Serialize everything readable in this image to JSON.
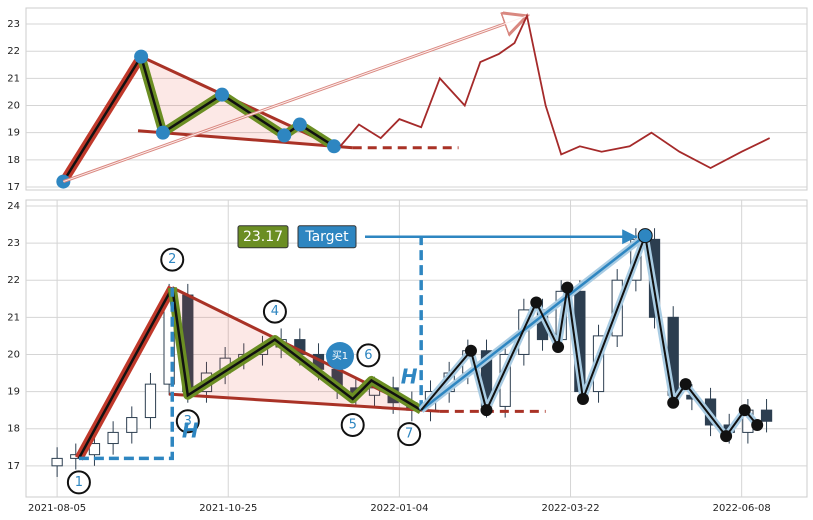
{
  "chart_data": [
    {
      "type": "line",
      "color": "#a52a2a",
      "x": [
        91,
        97,
        104,
        110,
        117,
        123,
        131,
        136,
        142,
        147,
        151,
        157,
        162,
        168,
        175,
        184,
        191,
        200,
        210,
        220,
        229
      ],
      "values": [
        18.5,
        19.3,
        18.8,
        19.5,
        19.2,
        21.0,
        20.0,
        21.6,
        21.9,
        22.3,
        23.3,
        20.0,
        18.2,
        18.5,
        18.3,
        18.5,
        19.0,
        18.3,
        17.7,
        18.3,
        18.8
      ],
      "xlim": [
        -10,
        241
      ],
      "ylim": [
        16.89,
        23.59
      ],
      "yticks": [
        17,
        18,
        19,
        20,
        21,
        22,
        23
      ],
      "grid": true,
      "pattern": {
        "x": [
          2,
          27,
          34,
          53,
          73,
          78,
          89
        ],
        "values": [
          17.2,
          21.8,
          19.0,
          20.4,
          18.9,
          19.3,
          18.5
        ]
      }
    },
    {
      "type": "candlestick",
      "x": [
        0,
        6,
        12,
        18,
        24,
        30,
        36,
        42,
        48,
        54,
        60,
        66,
        72,
        78,
        84,
        90,
        96,
        102,
        108,
        114,
        120,
        126,
        132,
        138,
        144,
        150,
        156,
        162,
        168,
        174,
        180,
        186,
        192,
        198,
        204,
        210,
        216,
        222,
        228
      ],
      "open": [
        17.0,
        17.2,
        17.3,
        17.6,
        17.9,
        18.3,
        19.2,
        21.6,
        19.0,
        19.5,
        19.9,
        20.0,
        20.2,
        20.4,
        20.0,
        19.6,
        19.1,
        18.9,
        19.1,
        18.7,
        18.5,
        19.0,
        19.5,
        20.1,
        18.6,
        20.0,
        21.2,
        20.4,
        21.7,
        19.0,
        20.5,
        22.0,
        23.1,
        21.0,
        18.9,
        18.8,
        18.1,
        17.9,
        18.5
      ],
      "high": [
        17.5,
        17.6,
        17.9,
        18.2,
        18.6,
        19.5,
        21.9,
        21.9,
        19.8,
        20.2,
        20.3,
        20.5,
        20.7,
        20.7,
        20.3,
        19.9,
        19.4,
        19.4,
        19.4,
        19.0,
        19.3,
        19.8,
        20.4,
        20.4,
        20.3,
        21.5,
        21.5,
        22.0,
        22.0,
        20.8,
        22.3,
        23.4,
        23.4,
        21.3,
        19.2,
        19.1,
        18.4,
        18.8,
        18.8
      ],
      "low": [
        16.7,
        16.9,
        17.0,
        17.3,
        17.6,
        18.0,
        18.9,
        18.7,
        18.7,
        19.2,
        19.6,
        19.7,
        19.9,
        19.7,
        19.3,
        18.8,
        18.6,
        18.6,
        18.4,
        18.2,
        18.2,
        18.7,
        19.2,
        18.3,
        18.3,
        19.7,
        20.1,
        20.1,
        18.7,
        18.7,
        20.2,
        21.7,
        20.7,
        18.6,
        18.5,
        17.8,
        17.6,
        17.6,
        17.9
      ],
      "close": [
        17.2,
        17.3,
        17.6,
        17.9,
        18.3,
        19.2,
        21.6,
        19.0,
        19.5,
        19.9,
        20.0,
        20.2,
        20.4,
        20.0,
        19.6,
        19.1,
        18.9,
        19.1,
        18.7,
        18.5,
        19.0,
        19.5,
        20.1,
        18.6,
        20.0,
        21.2,
        20.4,
        21.7,
        19.0,
        20.5,
        22.0,
        23.1,
        21.0,
        18.9,
        18.8,
        18.1,
        17.9,
        18.5,
        18.2
      ],
      "xlim": [
        -10,
        241
      ],
      "ylim": [
        16.16,
        24.16
      ],
      "yticks": [
        17,
        18,
        19,
        20,
        21,
        22,
        23,
        24
      ],
      "grid": true,
      "xticks": [
        {
          "value": 0,
          "label": "2021-08-05"
        },
        {
          "value": 55,
          "label": "2021-10-25"
        },
        {
          "value": 110,
          "label": "2022-01-04"
        },
        {
          "value": 165,
          "label": "2022-03-22"
        },
        {
          "value": 220,
          "label": "2022-06-08"
        }
      ],
      "pattern": {
        "x": [
          7,
          37,
          42,
          70,
          95,
          101,
          117
        ],
        "values": [
          17.2,
          21.8,
          18.9,
          20.4,
          18.8,
          19.3,
          18.5
        ],
        "labels": [
          "1",
          "2",
          "3",
          "4",
          "5",
          "6",
          "7"
        ]
      },
      "swings": {
        "x": [
          117,
          133,
          138,
          154,
          161,
          164,
          169,
          189,
          198,
          202,
          215,
          221,
          225
        ],
        "values": [
          18.5,
          20.1,
          18.5,
          21.4,
          20.2,
          21.8,
          18.8,
          23.2,
          18.7,
          19.2,
          17.8,
          18.5,
          18.1
        ]
      },
      "target": {
        "value": 23.17,
        "label": "23.17",
        "text": "Target"
      },
      "height_label": "H",
      "buy_label": "买1"
    }
  ]
}
